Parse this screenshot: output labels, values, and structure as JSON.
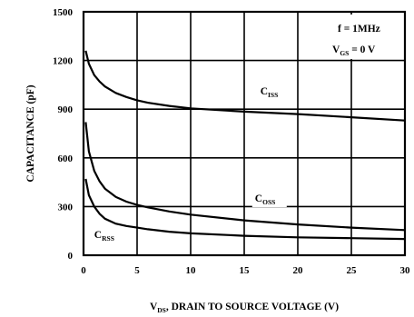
{
  "chart_data": {
    "type": "line",
    "xlabel": "V",
    "xlabel_sub": "DS",
    "xlabel_rest": ", DRAIN TO SOURCE VOLTAGE (V)",
    "ylabel": "CAPACITANCE (pF)",
    "xlim": [
      0,
      30
    ],
    "ylim": [
      0,
      1500
    ],
    "x_ticks": [
      0,
      5,
      10,
      15,
      20,
      25,
      30
    ],
    "x_tick_labels": [
      "0",
      "5",
      "10",
      "15",
      "20",
      "25",
      "30"
    ],
    "y_ticks": [
      0,
      300,
      600,
      900,
      1200,
      1500
    ],
    "y_tick_labels": [
      "0",
      "300",
      "600",
      "900",
      "1200",
      "1500"
    ],
    "grid": true,
    "conditions": {
      "line1": "f = 1MHz",
      "line2_main": "V",
      "line2_sub": "GS",
      "line2_rest": " = 0 V"
    },
    "series": [
      {
        "name": "C",
        "name_sub": "ISS",
        "label_at": [
          16.5,
          990
        ],
        "x": [
          0.2,
          0.5,
          1,
          1.5,
          2,
          3,
          4,
          5,
          6,
          8,
          10,
          15,
          20,
          25,
          30
        ],
        "y": [
          1260,
          1180,
          1110,
          1070,
          1040,
          1000,
          975,
          955,
          940,
          920,
          905,
          885,
          870,
          850,
          830
        ]
      },
      {
        "name": "C",
        "name_sub": "OSS",
        "label_at": [
          16,
          330
        ],
        "x": [
          0.2,
          0.5,
          1,
          1.5,
          2,
          3,
          4,
          5,
          6,
          8,
          10,
          15,
          20,
          25,
          30
        ],
        "y": [
          820,
          640,
          520,
          455,
          410,
          360,
          330,
          310,
          295,
          270,
          250,
          215,
          190,
          170,
          155
        ]
      },
      {
        "name": "C",
        "name_sub": "RSS",
        "label_at": [
          1.0,
          105
        ],
        "x": [
          0.2,
          0.5,
          1,
          1.5,
          2,
          3,
          4,
          5,
          6,
          8,
          10,
          15,
          20,
          25,
          30
        ],
        "y": [
          470,
          370,
          300,
          255,
          225,
          195,
          180,
          170,
          160,
          145,
          135,
          120,
          110,
          105,
          100
        ]
      }
    ]
  }
}
